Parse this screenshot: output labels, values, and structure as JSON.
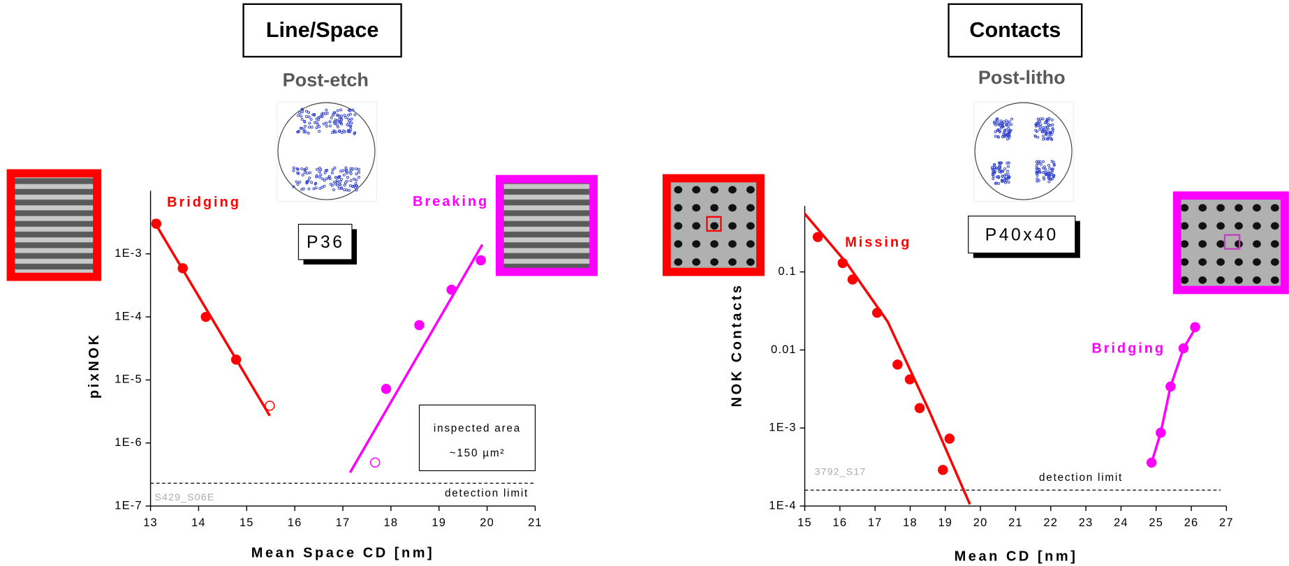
{
  "panels": [
    {
      "title": "Line/Space",
      "step": "Post-etch",
      "pattern": "P36"
    },
    {
      "title": "Contacts",
      "step": "Post-litho",
      "pattern": "P40x40"
    }
  ],
  "chart_data": [
    {
      "type": "scatter",
      "log_y": true,
      "x_label": "Mean Space CD [nm]",
      "y_label": "pixNOK",
      "xlim": [
        13,
        21
      ],
      "xticks": [
        13,
        14,
        15,
        16,
        17,
        18,
        19,
        20,
        21
      ],
      "ylim": [
        1e-07,
        0.01
      ],
      "yticks": [
        {
          "value": 1e-07,
          "label": "1E-7"
        },
        {
          "value": 1e-06,
          "label": "1E-6"
        },
        {
          "value": 1e-05,
          "label": "1E-5"
        },
        {
          "value": 0.0001,
          "label": "1E-4"
        },
        {
          "value": 0.001,
          "label": "1E-3"
        }
      ],
      "series": [
        {
          "name": "Bridging",
          "color": "#ff0000",
          "x": [
            13.12,
            13.67,
            14.15,
            14.78,
            15.48
          ],
          "values": [
            0.003,
            0.00059,
            0.0001,
            2.1e-05,
            3.9e-06
          ],
          "filled": [
            true,
            true,
            true,
            true,
            false
          ],
          "fit": {
            "x": [
              13.05,
              15.48
            ],
            "values": [
              0.0035,
              2.7e-06
            ]
          }
        },
        {
          "name": "Breaking",
          "color": "#ff00ff",
          "x": [
            17.67,
            17.9,
            18.59,
            19.26,
            19.87
          ],
          "values": [
            4.9e-07,
            7.2e-06,
            7.4e-05,
            0.00027,
            0.00079
          ],
          "filled": [
            false,
            true,
            true,
            true,
            true
          ],
          "fit": {
            "x": [
              17.15,
              19.9
            ],
            "values": [
              3.4e-07,
              0.0014
            ]
          }
        }
      ],
      "detection_limit": {
        "value": 2.3e-07,
        "label": "detection limit"
      },
      "sample_id": "S429_S06E",
      "note": [
        "inspected area",
        "~150 µm²"
      ]
    },
    {
      "type": "scatter",
      "log_y": true,
      "x_label": "Mean CD  [nm]",
      "y_label": "NOK Contacts",
      "xlim": [
        15,
        27
      ],
      "xticks": [
        15,
        16,
        17,
        18,
        19,
        20,
        21,
        22,
        23,
        24,
        25,
        26,
        27
      ],
      "ylim": [
        0.0001,
        0.7
      ],
      "yticks": [
        {
          "value": 0.0001,
          "label": "1E-4"
        },
        {
          "value": 0.001,
          "label": "1E-3"
        },
        0.01,
        0.1
      ],
      "series": [
        {
          "name": "Missing",
          "color": "#ff0000",
          "x": [
            15.37,
            16.08,
            16.36,
            17.06,
            17.64,
            17.99,
            18.27,
            18.93,
            19.12
          ],
          "values": [
            0.28,
            0.13,
            0.08,
            0.03,
            0.0065,
            0.0042,
            0.0018,
            0.00029,
            0.00073
          ],
          "filled": [
            true,
            true,
            true,
            true,
            true,
            true,
            true,
            true,
            true
          ],
          "fit": {
            "x": [
              14.98,
              16.19,
              17.36,
              18.53,
              19.7
            ],
            "values": [
              0.57,
              0.13,
              0.023,
              0.0017,
              0.000105
            ]
          }
        },
        {
          "name": "Bridging",
          "color": "#ff00ff",
          "x": [
            24.87,
            25.13,
            25.41,
            25.78,
            26.11
          ],
          "values": [
            0.00036,
            0.00087,
            0.0034,
            0.0105,
            0.0196
          ],
          "filled": [
            true,
            true,
            true,
            true,
            true
          ],
          "fit": {
            "x": [
              24.87,
              25.13,
              25.41,
              25.78,
              26.2
            ],
            "values": [
              0.00036,
              0.00087,
              0.0034,
              0.0105,
              0.022
            ]
          }
        }
      ],
      "detection_limit": {
        "value": 0.00016,
        "label": "detection limit"
      },
      "sample_id": "3792_S17"
    }
  ]
}
